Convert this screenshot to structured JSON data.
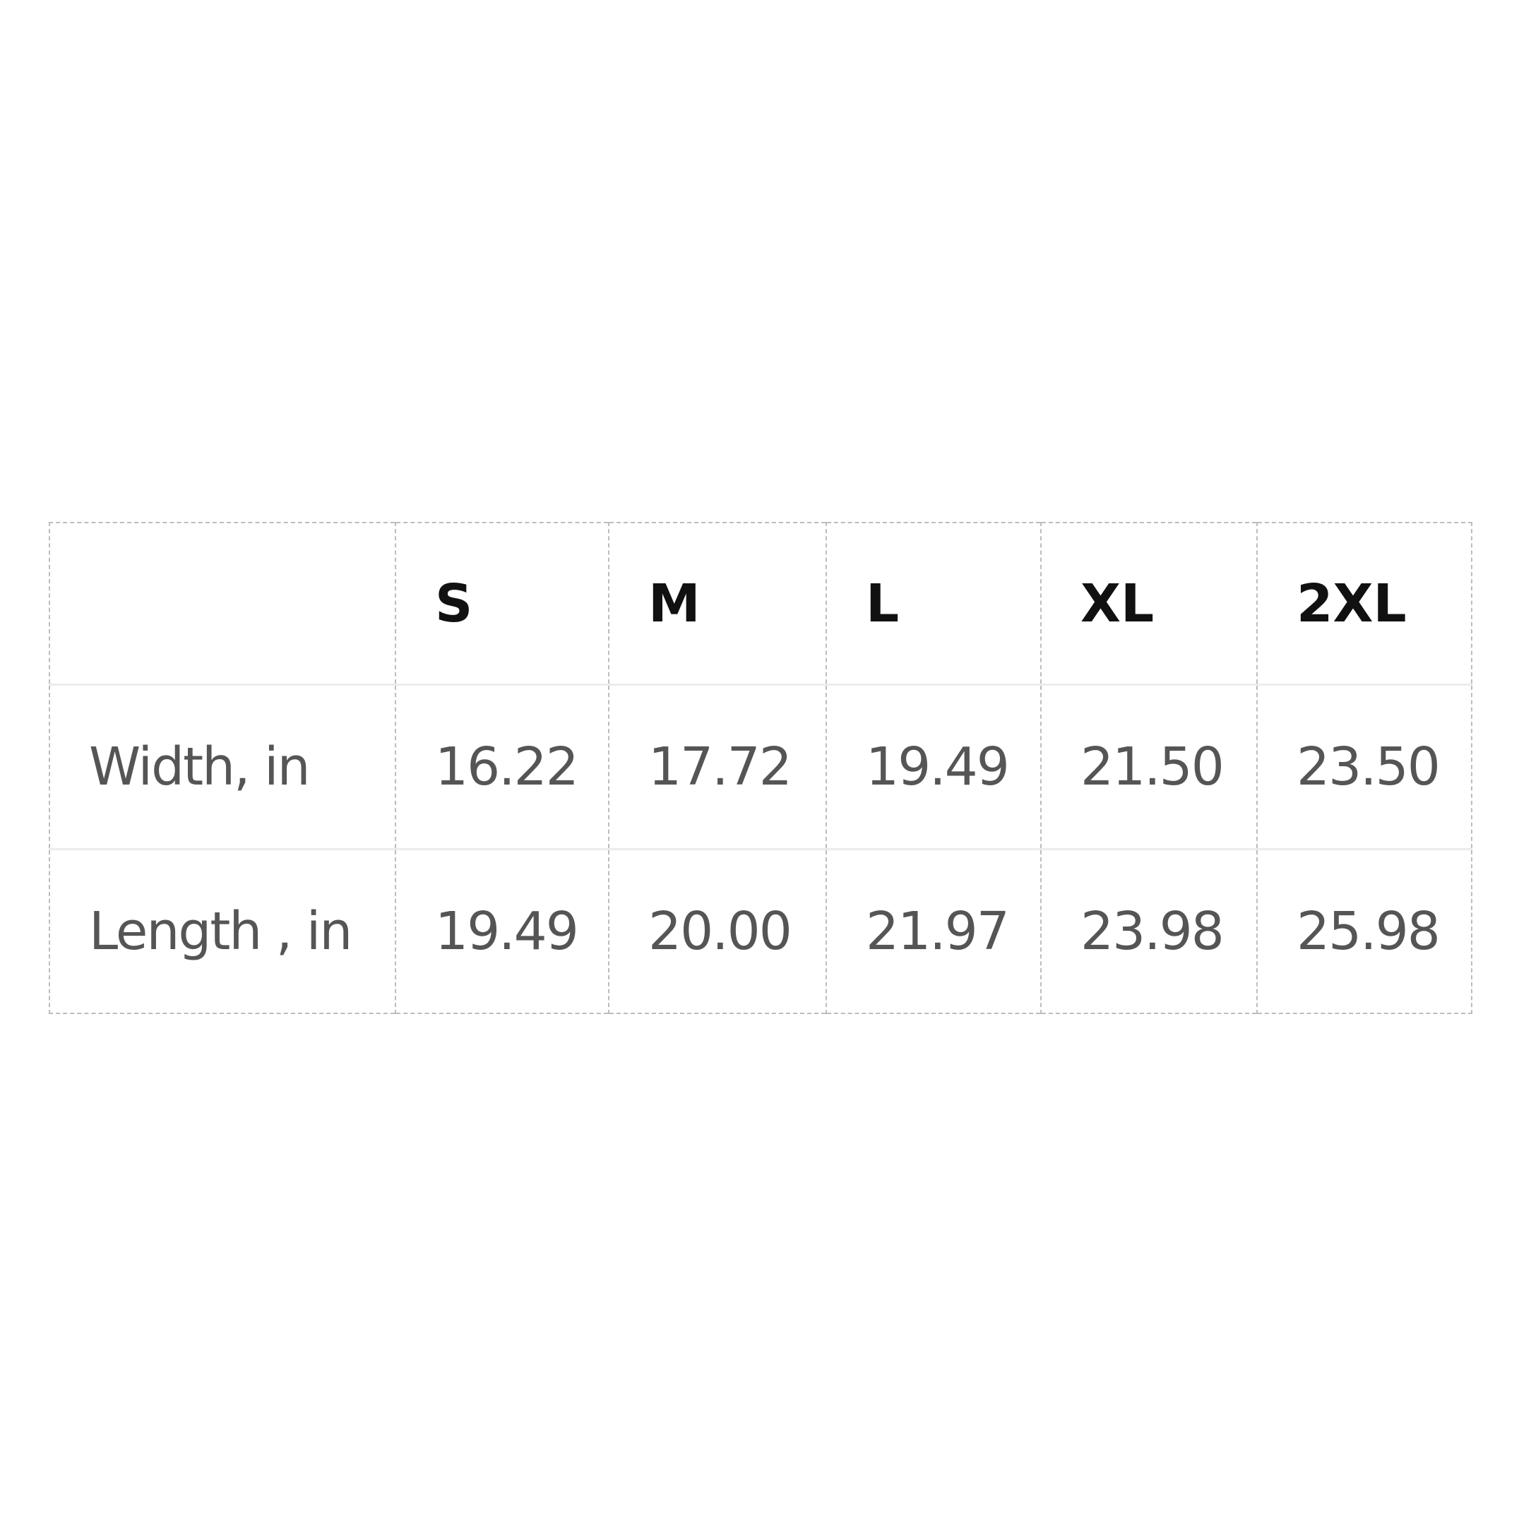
{
  "size_table": {
    "headers": [
      "",
      "S",
      "M",
      "L",
      "XL",
      "2XL"
    ],
    "rows": [
      {
        "label": "Width, in",
        "values": [
          "16.22",
          "17.72",
          "19.49",
          "21.50",
          "23.50"
        ]
      },
      {
        "label": "Length , in",
        "values": [
          "19.49",
          "20.00",
          "21.97",
          "23.98",
          "25.98"
        ]
      }
    ]
  }
}
